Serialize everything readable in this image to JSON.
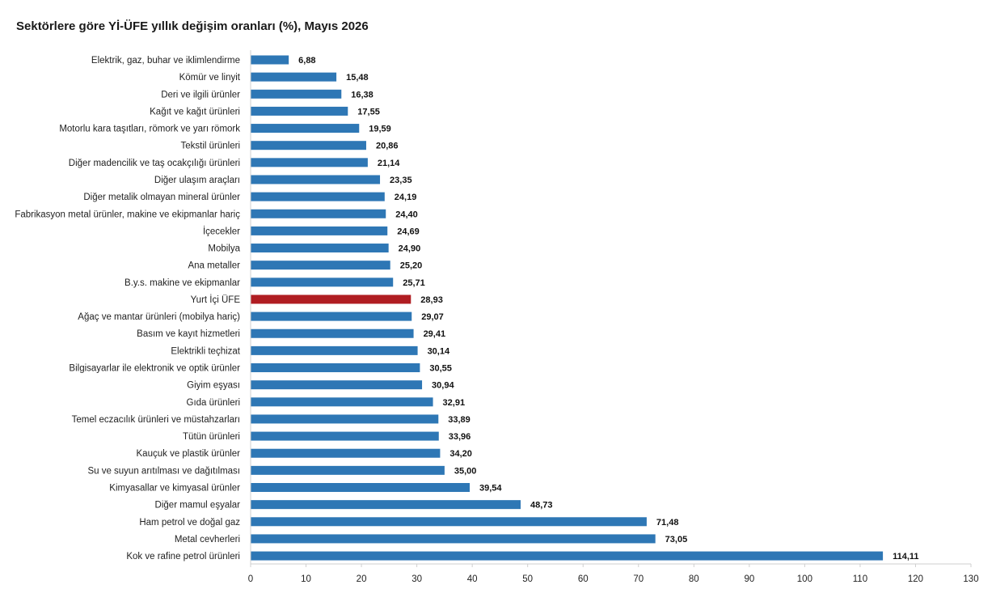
{
  "title": "Sektörlere göre Yİ-ÜFE yıllık değişim oranları (%), Mayıs 2026",
  "chart_data": {
    "type": "bar",
    "orientation": "horizontal",
    "title": "Sektörlere göre Yİ-ÜFE yıllık değişim oranları (%), Mayıs 2026",
    "xlabel": "",
    "ylabel": "",
    "xlim": [
      0,
      130
    ],
    "xticks": [
      0,
      10,
      20,
      30,
      40,
      50,
      60,
      70,
      80,
      90,
      100,
      110,
      120,
      130
    ],
    "grid": false,
    "colors": {
      "default": "#2e77b5",
      "highlight": "#b01d22"
    },
    "categories": [
      "Elektrik, gaz, buhar ve iklimlendirme",
      "Kömür ve linyit",
      "Deri ve ilgili ürünler",
      "Kağıt ve kağıt ürünleri",
      "Motorlu kara taşıtları, römork ve yarı römork",
      "Tekstil ürünleri",
      "Diğer madencilik ve taş ocakçılığı ürünleri",
      "Diğer ulaşım araçları",
      "Diğer metalik olmayan mineral ürünler",
      "Fabrikasyon metal ürünler, makine ve ekipmanlar hariç",
      "İçecekler",
      "Mobilya",
      "Ana metaller",
      "B.y.s. makine ve ekipmanlar",
      "Yurt İçi ÜFE",
      "Ağaç ve mantar ürünleri (mobilya hariç)",
      "Basım ve kayıt hizmetleri",
      "Elektrikli teçhizat",
      "Bilgisayarlar ile elektronik ve optik ürünler",
      "Giyim eşyası",
      "Gıda ürünleri",
      "Temel eczacılık ürünleri ve müstahzarları",
      "Tütün ürünleri",
      "Kauçuk ve plastik ürünler",
      "Su ve suyun arıtılması ve dağıtılması",
      "Kimyasallar ve kimyasal ürünler",
      "Diğer mamul eşyalar",
      "Ham petrol ve doğal gaz",
      "Metal cevherleri",
      "Kok ve rafine petrol ürünleri"
    ],
    "values": [
      6.88,
      15.48,
      16.38,
      17.55,
      19.59,
      20.86,
      21.14,
      23.35,
      24.19,
      24.4,
      24.69,
      24.9,
      25.2,
      25.71,
      28.93,
      29.07,
      29.41,
      30.14,
      30.55,
      30.94,
      32.91,
      33.89,
      33.96,
      34.2,
      35.0,
      39.54,
      48.73,
      71.48,
      73.05,
      114.11
    ],
    "value_labels": [
      "6,88",
      "15,48",
      "16,38",
      "17,55",
      "19,59",
      "20,86",
      "21,14",
      "23,35",
      "24,19",
      "24,40",
      "24,69",
      "24,90",
      "25,20",
      "25,71",
      "28,93",
      "29,07",
      "29,41",
      "30,14",
      "30,55",
      "30,94",
      "32,91",
      "33,89",
      "33,96",
      "34,20",
      "35,00",
      "39,54",
      "48,73",
      "71,48",
      "73,05",
      "114,11"
    ],
    "highlight": "Yurt İçi ÜFE"
  }
}
